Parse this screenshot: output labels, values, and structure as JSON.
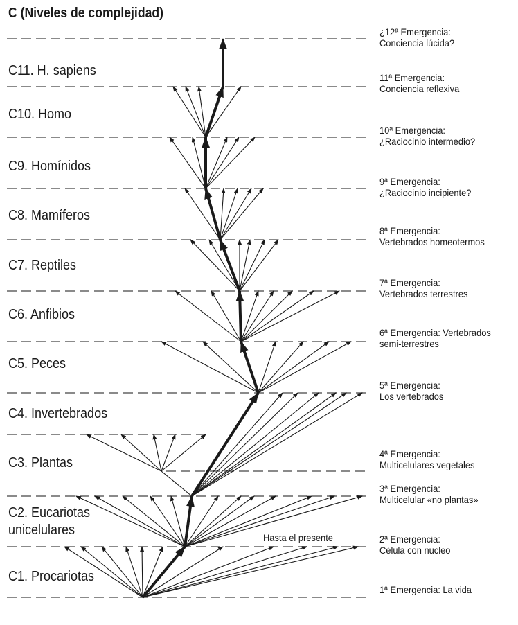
{
  "title": "C (Niveles de complejidad)",
  "levels": [
    "C11. H. sapiens",
    "C10. Homo",
    "C9. Homínidos",
    "C8. Mamíferos",
    "C7. Reptiles",
    "C6. Anfibios",
    "C5. Peces",
    "C4. Invertebrados",
    "C3. Plantas",
    "C2. Eucariotas",
    "unicelulares",
    "C1. Procariotas"
  ],
  "emergences": [
    {
      "l1": "¿12ª Emergencia:",
      "l2": "Conciencia lúcida?"
    },
    {
      "l1": "11ª Emergencia:",
      "l2": "Conciencia reflexiva"
    },
    {
      "l1": "10ª Emergencia:",
      "l2": "¿Raciocinio intermedio?"
    },
    {
      "l1": "9ª Emergencia:",
      "l2": "¿Raciocinio incipiente?"
    },
    {
      "l1": "8ª Emergencia:",
      "l2": "Vertebrados homeotermos"
    },
    {
      "l1": "7ª Emergencia:",
      "l2": "Vertebrados terrestres"
    },
    {
      "l1": "6ª Emergencia: Vertebrados",
      "l2": "semi-terrestres"
    },
    {
      "l1": "5ª Emergencia:",
      "l2": "Los vertebrados"
    },
    {
      "l1": "4ª Emergencia:",
      "l2": "Multicelulares vegetales"
    },
    {
      "l1": "3ª Emergencia:",
      "l2": "Multicelular «no plantas»"
    },
    {
      "l1": "2ª Emergencia:",
      "l2": "Célula con nucleo"
    },
    {
      "l1": "1ª Emergencia: La vida",
      "l2": ""
    }
  ],
  "note": "Hasta el presente",
  "colors": {
    "ink": "#1a1a1a",
    "dash": "#8a8a8a"
  }
}
